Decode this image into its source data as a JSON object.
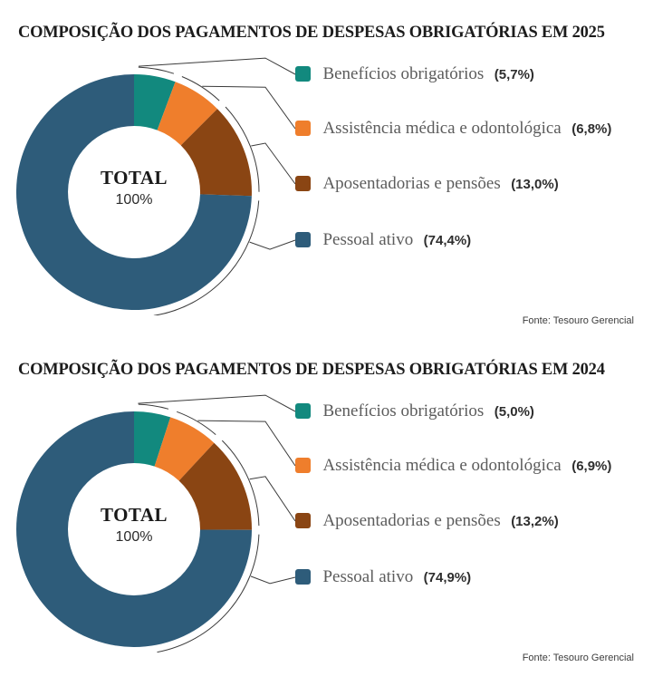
{
  "chart_data": [
    {
      "type": "donut",
      "title": "COMPOSIÇÃO DOS PAGAMENTOS DE DESPESAS OBRIGATÓRIAS EM 2025",
      "center_label": "TOTAL",
      "center_value": "100%",
      "source": "Fonte: Tesouro Gerencial",
      "start_angle_deg": 0,
      "direction": "clockwise",
      "legend_position": "right",
      "categories": [
        "Benefícios obrigatórios",
        "Assistência médica e odontológica",
        "Aposentadorias e pensões",
        "Pessoal ativo"
      ],
      "values": [
        5.7,
        6.8,
        13.0,
        74.4
      ],
      "value_labels": [
        "(5,7%)",
        "(6,8%)",
        "(13,0%)",
        "(74,4%)"
      ],
      "colors": [
        "#12897e",
        "#ef7e2c",
        "#8a4513",
        "#2e5c7a"
      ]
    },
    {
      "type": "donut",
      "title": "COMPOSIÇÃO DOS PAGAMENTOS DE DESPESAS OBRIGATÓRIAS EM 2024",
      "center_label": "TOTAL",
      "center_value": "100%",
      "source": "Fonte: Tesouro Gerencial",
      "start_angle_deg": 0,
      "direction": "clockwise",
      "legend_position": "right",
      "categories": [
        "Benefícios obrigatórios",
        "Assistência médica e odontológica",
        "Aposentadorias e pensões",
        "Pessoal ativo"
      ],
      "values": [
        5.0,
        6.9,
        13.2,
        74.9
      ],
      "value_labels": [
        "(5,0%)",
        "(6,9%)",
        "(13,2%)",
        "(74,9%)"
      ],
      "colors": [
        "#12897e",
        "#ef7e2c",
        "#8a4513",
        "#2e5c7a"
      ]
    }
  ],
  "line_color": "#3c3c3c"
}
